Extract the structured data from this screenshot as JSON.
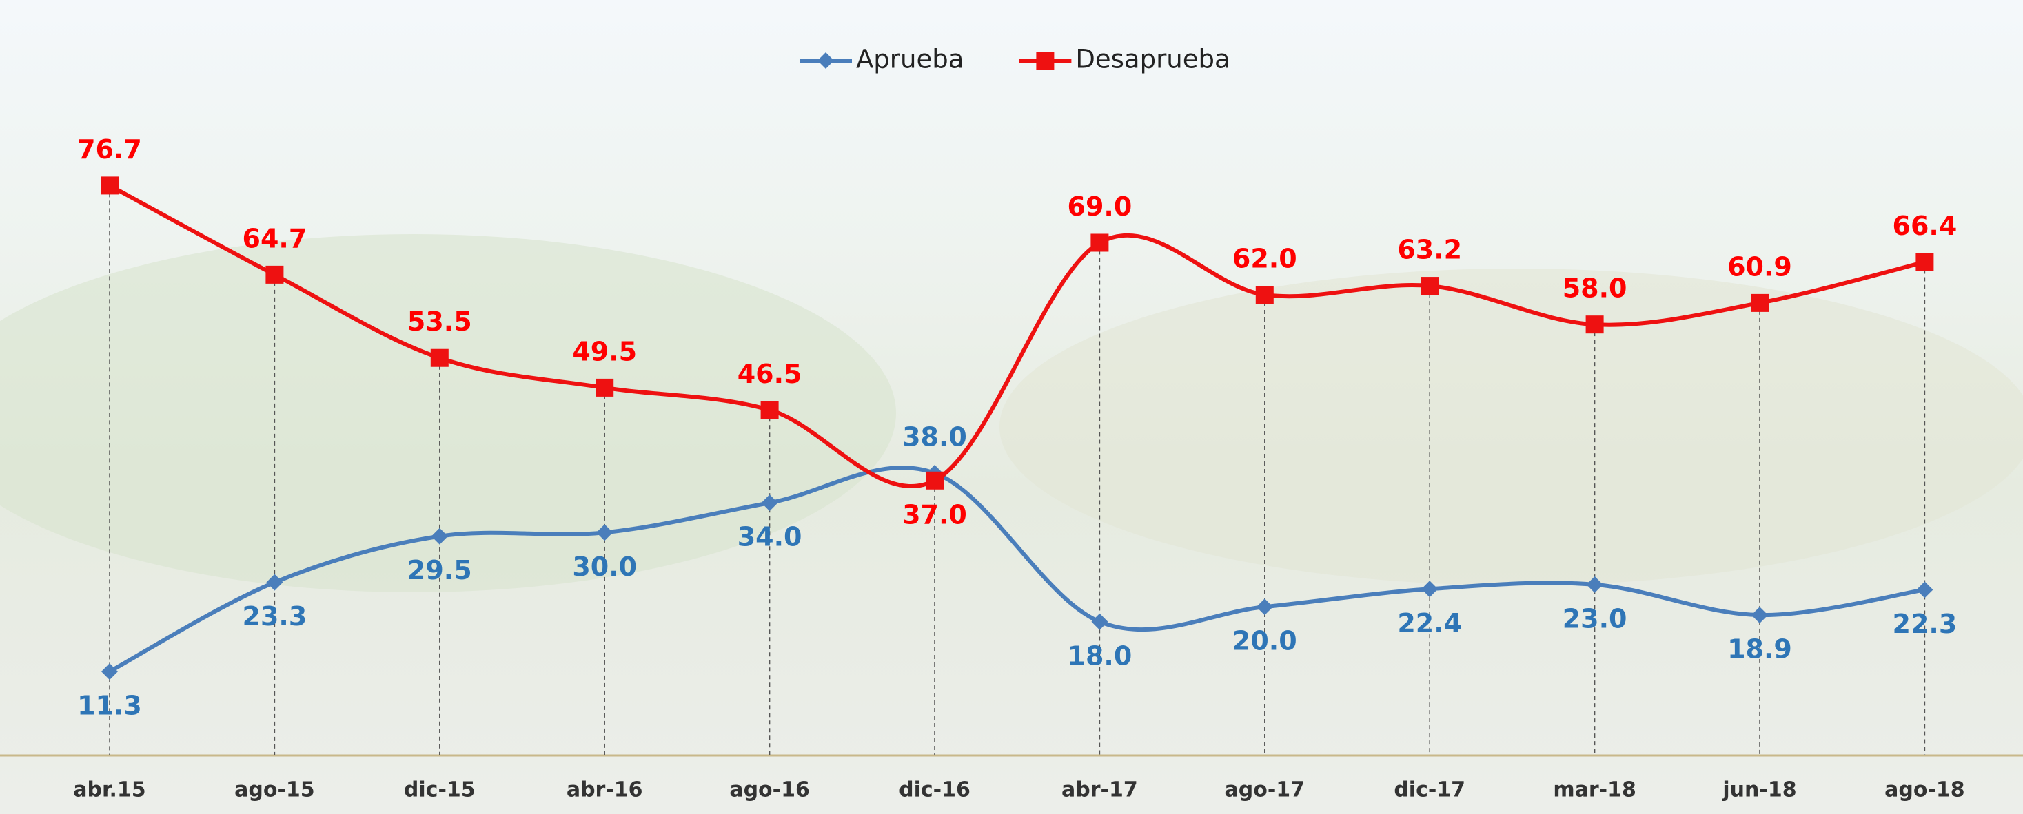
{
  "chart_data": {
    "type": "line",
    "categories": [
      "abr.15",
      "ago-15",
      "dic-15",
      "abr-16",
      "ago-16",
      "dic-16",
      "abr-17",
      "ago-17",
      "dic-17",
      "mar-18",
      "jun-18",
      "ago-18"
    ],
    "series": [
      {
        "name": "Aprueba",
        "color": "#4a7ebb",
        "label_color": "#2e75b6",
        "marker": "diamond",
        "values": [
          11.3,
          23.3,
          29.5,
          30.0,
          34.0,
          38.0,
          18.0,
          20.0,
          22.4,
          23.0,
          18.9,
          22.3
        ],
        "value_labels": [
          "11.3",
          "23.3",
          "29.5",
          "30.0",
          "34.0",
          "38.0",
          "18.0",
          "20.0",
          "22.4",
          "23.0",
          "18.9",
          "22.3"
        ]
      },
      {
        "name": "Desaprueba",
        "color": "#ee1111",
        "label_color": "#ff0000",
        "marker": "square",
        "values": [
          76.7,
          64.7,
          53.5,
          49.5,
          46.5,
          37.0,
          69.0,
          62.0,
          63.2,
          58.0,
          60.9,
          66.4
        ],
        "value_labels": [
          "76.7",
          "64.7",
          "53.5",
          "49.5",
          "46.5",
          "37.0",
          "69.0",
          "62.0",
          "63.2",
          "58.0",
          "60.9",
          "66.4"
        ]
      }
    ],
    "smooth": true,
    "legend": "top"
  }
}
